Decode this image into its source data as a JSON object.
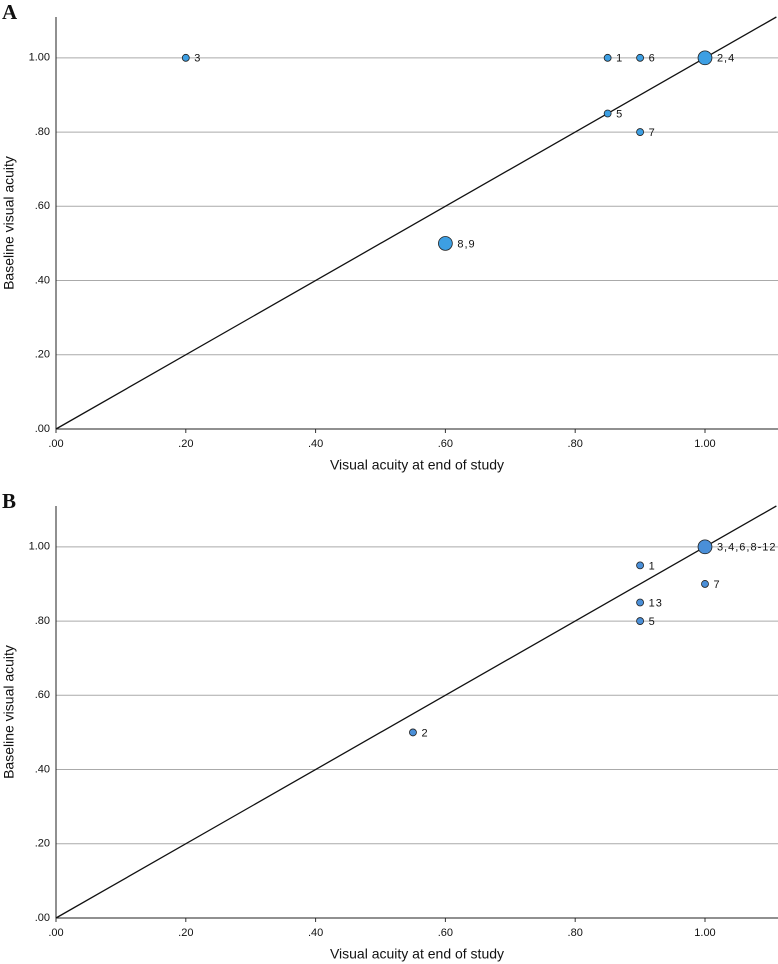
{
  "chart_data": [
    {
      "type": "scatter",
      "panel": "A",
      "x_label": "Visual acuity at end of study",
      "y_label": "Baseline visual acuity",
      "x": [
        0.2,
        0.85,
        0.9,
        1.0,
        0.85,
        0.9,
        0.6
      ],
      "values": [
        1.0,
        1.0,
        1.0,
        1.0,
        0.85,
        0.8,
        0.5
      ],
      "sizes": [
        1,
        1,
        1,
        2,
        1,
        1,
        2
      ],
      "labels": [
        "3",
        "1",
        "6",
        "2,4",
        "5",
        "7",
        "8,9"
      ],
      "color": "#3d9fe3",
      "xlim": [
        0,
        1.1125
      ],
      "ylim": [
        0,
        1.11
      ],
      "xticks": [
        {
          "value": 0,
          "label": ".00"
        },
        {
          "value": 0.2,
          "label": ".20"
        },
        {
          "value": 0.4,
          "label": ".40"
        },
        {
          "value": 0.6,
          "label": ".60"
        },
        {
          "value": 0.8,
          "label": ".80"
        },
        {
          "value": 1.0,
          "label": "1.00"
        }
      ],
      "yticks": [
        {
          "value": 0,
          "label": ".00"
        },
        {
          "value": 0.2,
          "label": ".20"
        },
        {
          "value": 0.4,
          "label": ".40"
        },
        {
          "value": 0.6,
          "label": ".60"
        },
        {
          "value": 0.8,
          "label": ".80"
        },
        {
          "value": 1.0,
          "label": "1.00"
        }
      ],
      "grid": true
    },
    {
      "type": "scatter",
      "panel": "B",
      "x_label": "Visual acuity at end of study",
      "y_label": "Baseline visual acuity",
      "x": [
        1.0,
        0.9,
        1.0,
        0.9,
        0.9,
        0.55
      ],
      "values": [
        1.0,
        0.95,
        0.9,
        0.85,
        0.8,
        0.5
      ],
      "sizes": [
        2,
        1,
        1,
        1,
        1,
        1
      ],
      "labels": [
        "3,4,6,8-12",
        "1",
        "7",
        "13",
        "5",
        "2"
      ],
      "color": "#4a8fd8",
      "xlim": [
        0,
        1.1125
      ],
      "ylim": [
        0,
        1.11
      ],
      "xticks": [
        {
          "value": 0,
          "label": ".00"
        },
        {
          "value": 0.2,
          "label": ".20"
        },
        {
          "value": 0.4,
          "label": ".40"
        },
        {
          "value": 0.6,
          "label": ".60"
        },
        {
          "value": 0.8,
          "label": ".80"
        },
        {
          "value": 1.0,
          "label": "1.00"
        }
      ],
      "yticks": [
        {
          "value": 0,
          "label": ".00"
        },
        {
          "value": 0.2,
          "label": ".20"
        },
        {
          "value": 0.4,
          "label": ".40"
        },
        {
          "value": 0.6,
          "label": ".60"
        },
        {
          "value": 0.8,
          "label": ".80"
        },
        {
          "value": 1.0,
          "label": "1.00"
        }
      ],
      "grid": true
    }
  ]
}
